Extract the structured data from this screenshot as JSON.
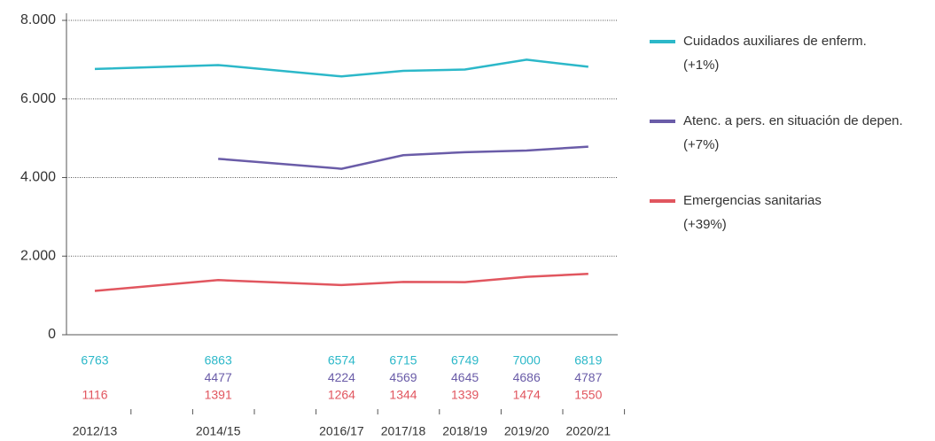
{
  "chart_data": {
    "type": "line",
    "categories": [
      "2012/13",
      null,
      "2014/15",
      null,
      "2016/17",
      "2017/18",
      "2018/19",
      "2019/20",
      "2020/21"
    ],
    "series": [
      {
        "name": "Cuidados auxiliares de enferm.",
        "change": "(+1%)",
        "color": "#2cb8c9",
        "values": [
          6763,
          null,
          6863,
          null,
          6574,
          6715,
          6749,
          7000,
          6819
        ]
      },
      {
        "name": "Atenc. a pers. en situación de depen.",
        "change": "(+7%)",
        "color": "#6a5ca8",
        "values": [
          null,
          null,
          4477,
          null,
          4224,
          4569,
          4645,
          4686,
          4787
        ]
      },
      {
        "name": "Emergencias sanitarias",
        "change": "(+39%)",
        "color": "#e1565f",
        "values": [
          1116,
          null,
          1391,
          null,
          1264,
          1344,
          1339,
          1474,
          1550
        ]
      }
    ],
    "ylim": [
      0,
      8000
    ],
    "yticks": [
      0,
      {
        "value": 2000,
        "label": "2.000"
      },
      {
        "value": 4000,
        "label": "4.000"
      },
      {
        "value": 6000,
        "label": "6.000"
      },
      {
        "value": 8000,
        "label": "8.000"
      }
    ],
    "grid": true,
    "span_gaps": true,
    "legend": "right",
    "data_labels": "below-axis"
  }
}
